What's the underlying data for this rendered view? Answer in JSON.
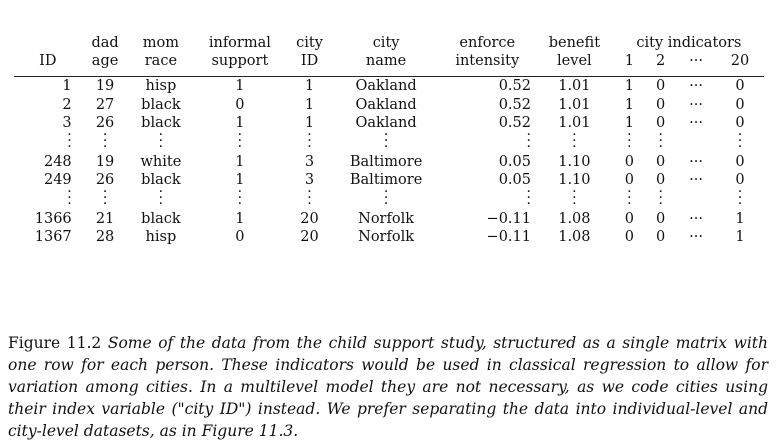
{
  "table": {
    "headers_top": [
      "",
      "dad",
      "mom",
      "informal",
      "city",
      "city",
      "enforce",
      "benefit",
      "city indicators"
    ],
    "headers_bottom": [
      "ID",
      "age",
      "race",
      "support",
      "ID",
      "name",
      "intensity",
      "level",
      "1",
      "2",
      "···",
      "20"
    ],
    "groups": [
      [
        {
          "id": "1",
          "dad_age": "19",
          "mom_race": "hisp",
          "informal": "1",
          "city_id": "1",
          "city_name": "Oakland",
          "enforce": "0.52",
          "benefit": "1.01",
          "i1": "1",
          "i2": "0",
          "idots": "···",
          "i20": "0"
        },
        {
          "id": "2",
          "dad_age": "27",
          "mom_race": "black",
          "informal": "0",
          "city_id": "1",
          "city_name": "Oakland",
          "enforce": "0.52",
          "benefit": "1.01",
          "i1": "1",
          "i2": "0",
          "idots": "···",
          "i20": "0"
        },
        {
          "id": "3",
          "dad_age": "26",
          "mom_race": "black",
          "informal": "1",
          "city_id": "1",
          "city_name": "Oakland",
          "enforce": "0.52",
          "benefit": "1.01",
          "i1": "1",
          "i2": "0",
          "idots": "···",
          "i20": "0"
        }
      ],
      [
        {
          "id": "248",
          "dad_age": "19",
          "mom_race": "white",
          "informal": "1",
          "city_id": "3",
          "city_name": "Baltimore",
          "enforce": "0.05",
          "benefit": "1.10",
          "i1": "0",
          "i2": "0",
          "idots": "···",
          "i20": "0"
        },
        {
          "id": "249",
          "dad_age": "26",
          "mom_race": "black",
          "informal": "1",
          "city_id": "3",
          "city_name": "Baltimore",
          "enforce": "0.05",
          "benefit": "1.10",
          "i1": "0",
          "i2": "0",
          "idots": "···",
          "i20": "0"
        }
      ],
      [
        {
          "id": "1366",
          "dad_age": "21",
          "mom_race": "black",
          "informal": "1",
          "city_id": "20",
          "city_name": "Norfolk",
          "enforce": "−0.11",
          "benefit": "1.08",
          "i1": "0",
          "i2": "0",
          "idots": "···",
          "i20": "1"
        },
        {
          "id": "1367",
          "dad_age": "28",
          "mom_race": "hisp",
          "informal": "0",
          "city_id": "20",
          "city_name": "Norfolk",
          "enforce": "−0.11",
          "benefit": "1.08",
          "i1": "0",
          "i2": "0",
          "idots": "···",
          "i20": "1"
        }
      ]
    ]
  },
  "caption": {
    "lead": "Figure 11.2",
    "body": "Some of the data from the child support study, structured as a single matrix with one row for each person. These indicators would be used in classical regression to allow for variation among cities. In a multilevel model they are not necessary, as we code cities using their index variable (\"city ID\") instead. We prefer separating the data into individual-level and city-level datasets, as in Figure 11.3."
  }
}
